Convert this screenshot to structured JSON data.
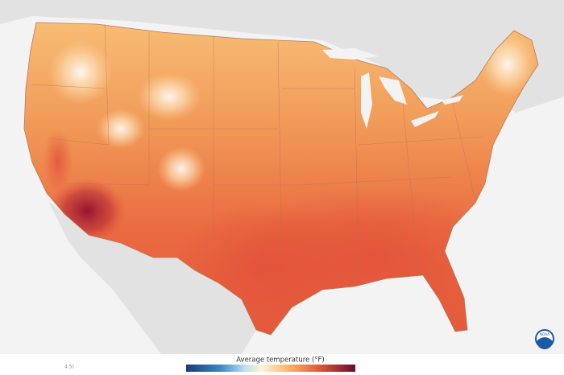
{
  "map": {
    "legend": {
      "title": "Average temperature (°F)"
    },
    "footnote": "4.5)",
    "logo": "NOAA"
  }
}
